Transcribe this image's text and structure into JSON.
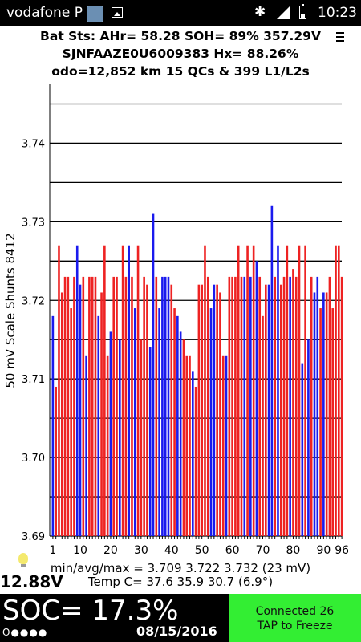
{
  "status_bar": {
    "carrier": "vodafone P",
    "time": "10:23"
  },
  "header": {
    "line1": "Bat Sts: AHr= 58.28 SOH= 89% 357.29V",
    "line2": "SJNFAAZE0U6009383   Hx= 88.26%",
    "line3": "odo=12,852 km 15 QCs & 399 L1/L2s"
  },
  "chart_data": {
    "type": "bar",
    "ylabel": "50 mV Scale   Shunts 8412",
    "ylim": [
      3.69,
      3.7475
    ],
    "y_tick_labels": [
      "3.69",
      "3.70",
      "3.71",
      "3.72",
      "3.73",
      "3.74"
    ],
    "y_ticks": [
      3.69,
      3.7,
      3.71,
      3.72,
      3.73,
      3.74
    ],
    "gridlines": [
      3.69,
      3.695,
      3.7,
      3.705,
      3.71,
      3.715,
      3.72,
      3.725,
      3.73,
      3.735,
      3.74,
      3.745
    ],
    "x_tick_labels": [
      "1",
      "10",
      "20",
      "30",
      "40",
      "50",
      "60",
      "70",
      "80",
      "90",
      "96"
    ],
    "x_ticks": [
      1,
      10,
      20,
      30,
      40,
      50,
      60,
      70,
      80,
      90,
      96
    ],
    "x": [
      1,
      2,
      3,
      4,
      5,
      6,
      7,
      8,
      9,
      10,
      11,
      12,
      13,
      14,
      15,
      16,
      17,
      18,
      19,
      20,
      21,
      22,
      23,
      24,
      25,
      26,
      27,
      28,
      29,
      30,
      31,
      32,
      33,
      34,
      35,
      36,
      37,
      38,
      39,
      40,
      41,
      42,
      43,
      44,
      45,
      46,
      47,
      48,
      49,
      50,
      51,
      52,
      53,
      54,
      55,
      56,
      57,
      58,
      59,
      60,
      61,
      62,
      63,
      64,
      65,
      66,
      67,
      68,
      69,
      70,
      71,
      72,
      73,
      74,
      75,
      76,
      77,
      78,
      79,
      80,
      81,
      82,
      83,
      84,
      85,
      86,
      87,
      88,
      89,
      90,
      91,
      92,
      93,
      94,
      95,
      96
    ],
    "values": [
      3.718,
      3.709,
      3.727,
      3.721,
      3.723,
      3.723,
      3.719,
      3.723,
      3.727,
      3.722,
      3.723,
      3.713,
      3.723,
      3.723,
      3.723,
      3.718,
      3.721,
      3.727,
      3.713,
      3.716,
      3.723,
      3.723,
      3.715,
      3.727,
      3.723,
      3.727,
      3.723,
      3.719,
      3.727,
      3.715,
      3.723,
      3.722,
      3.714,
      3.731,
      3.723,
      3.719,
      3.723,
      3.723,
      3.723,
      3.722,
      3.719,
      3.718,
      3.716,
      3.715,
      3.713,
      3.713,
      3.711,
      3.709,
      3.722,
      3.722,
      3.727,
      3.723,
      3.719,
      3.722,
      3.722,
      3.721,
      3.713,
      3.713,
      3.723,
      3.723,
      3.723,
      3.727,
      3.723,
      3.723,
      3.727,
      3.723,
      3.727,
      3.725,
      3.723,
      3.718,
      3.722,
      3.722,
      3.732,
      3.723,
      3.727,
      3.722,
      3.723,
      3.727,
      3.723,
      3.724,
      3.723,
      3.727,
      3.712,
      3.727,
      3.715,
      3.723,
      3.721,
      3.723,
      3.719,
      3.721,
      3.721,
      3.723,
      3.719,
      3.727,
      3.727,
      3.723
    ],
    "colors": [
      "blue",
      "red",
      "red",
      "red",
      "red",
      "red",
      "red",
      "red",
      "blue",
      "blue",
      "red",
      "blue",
      "red",
      "red",
      "red",
      "blue",
      "red",
      "red",
      "red",
      "blue",
      "red",
      "red",
      "blue",
      "red",
      "red",
      "blue",
      "red",
      "blue",
      "red",
      "red",
      "red",
      "red",
      "blue",
      "blue",
      "red",
      "blue",
      "blue",
      "blue",
      "blue",
      "red",
      "red",
      "blue",
      "blue",
      "red",
      "red",
      "red",
      "blue",
      "red",
      "red",
      "red",
      "red",
      "red",
      "blue",
      "blue",
      "red",
      "red",
      "red",
      "blue",
      "red",
      "red",
      "red",
      "red",
      "red",
      "blue",
      "red",
      "blue",
      "red",
      "blue",
      "red",
      "red",
      "red",
      "blue",
      "blue",
      "red",
      "blue",
      "red",
      "red",
      "red",
      "blue",
      "red",
      "red",
      "red",
      "blue",
      "red",
      "blue",
      "red",
      "blue",
      "blue",
      "red",
      "blue",
      "red",
      "red",
      "red",
      "red",
      "red",
      "red"
    ],
    "series_colors": {
      "red": "#ee2222",
      "blue": "#1a1aee"
    }
  },
  "stats": {
    "line1": "min/avg/max = 3.709 3.722 3.732  (23 mV)",
    "line2": "Temp C= 37.6  35.9  30.7  (6.9°)"
  },
  "bottom": {
    "voltage": "12.88V",
    "soc": "SOC= 17.3%",
    "dots": "O●●●●",
    "date": "08/15/2016",
    "connected": "Connected 26",
    "tap": "TAP to Freeze",
    "button_color": "#33ee33"
  }
}
